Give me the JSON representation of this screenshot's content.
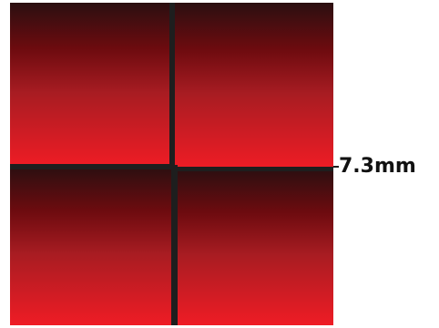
{
  "bezel_gap": {
    "label": "7.3mm"
  },
  "colors": {
    "panel_top": "#2b0f10",
    "panel_mid": "#8a1418",
    "panel_bottom": "#ee1c24",
    "bezel": "#1e1e1e",
    "label_text": "#111111",
    "background": "#ffffff"
  },
  "panels": [
    {
      "name": "top-left"
    },
    {
      "name": "top-right"
    },
    {
      "name": "bottom-left"
    },
    {
      "name": "bottom-right"
    }
  ]
}
